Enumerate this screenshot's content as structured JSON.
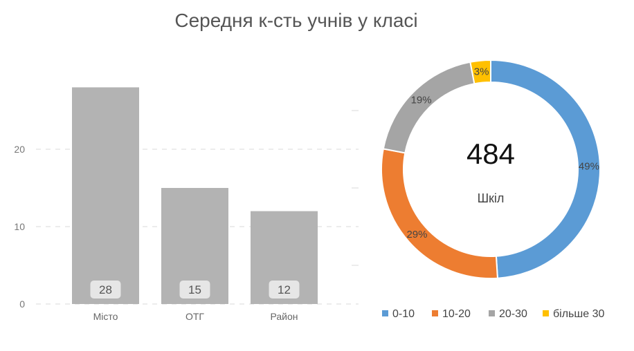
{
  "title": "Середня к-сть учнів у класі",
  "chart_data": [
    {
      "type": "bar",
      "categories": [
        "Місто",
        "ОТГ",
        "Район"
      ],
      "values": [
        28,
        15,
        12
      ],
      "data_labels": [
        "28",
        "15",
        "12"
      ],
      "ylim": [
        0,
        30
      ],
      "yticks": [
        0,
        10,
        20
      ],
      "ytick_labels": [
        "0",
        "10",
        "20"
      ],
      "grid": true,
      "colors": {
        "bar": "#b3b3b3",
        "label_box": "#e6e6e6"
      }
    },
    {
      "type": "pie",
      "donut": true,
      "categories": [
        "0-10",
        "10-20",
        "20-30",
        "більше 30"
      ],
      "values": [
        49,
        29,
        19,
        3
      ],
      "data_labels": [
        "49%",
        "29%",
        "19%",
        "3%"
      ],
      "center_value": "484",
      "center_caption": "Шкіл",
      "legend_position": "bottom",
      "colors": [
        "#5b9bd5",
        "#ed7d31",
        "#a5a5a5",
        "#ffc000"
      ]
    }
  ]
}
